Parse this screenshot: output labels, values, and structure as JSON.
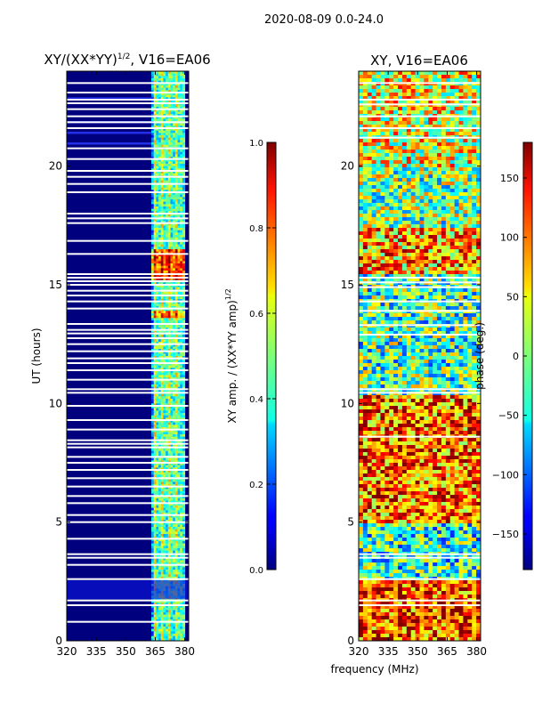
{
  "suptitle": "2020-08-09 0.0-24.0",
  "xlabel_shared": "frequency (MHz)",
  "colors": {
    "background": "#ffffff",
    "axis": "#000000",
    "gap": "#ffffff"
  },
  "chart_data": [
    {
      "type": "heatmap",
      "title_main": "XY/(XX*YY)",
      "title_exp": "1/2",
      "title_tail": ", V16=EA06",
      "ylabel": "UT (hours)",
      "xlim": [
        320,
        382
      ],
      "ylim": [
        0,
        24
      ],
      "xticks": [
        320,
        335,
        350,
        365,
        380
      ],
      "yticks": [
        0,
        5,
        10,
        15,
        20
      ],
      "bright_band_mhz": [
        363,
        380
      ],
      "gap_hours": [
        0.8,
        1.5,
        1.7,
        2.6,
        3.2,
        3.5,
        3.65,
        4.3,
        5.0,
        5.3,
        5.8,
        6.1,
        6.5,
        6.85,
        7.2,
        7.5,
        7.75,
        8.15,
        8.3,
        8.45,
        8.9,
        9.3,
        9.9,
        10.45,
        10.6,
        11.0,
        11.4,
        11.7,
        11.9,
        12.2,
        12.5,
        12.75,
        12.95,
        13.1,
        13.35,
        14.0,
        14.3,
        14.55,
        14.75,
        15.0,
        15.15,
        15.3,
        15.45,
        16.3,
        16.85,
        17.6,
        17.8,
        18.0,
        18.9,
        19.25,
        19.55,
        19.8,
        20.3,
        20.75,
        21.6,
        21.85,
        22.1,
        22.4,
        22.65,
        22.8,
        23.1,
        23.5
      ],
      "colorbar": {
        "label_main": "XY amp. / (XX*YY amp)",
        "label_exp": "1/2",
        "ticks": [
          "0.0",
          "0.2",
          "0.4",
          "0.6",
          "0.8",
          "1.0"
        ],
        "range": [
          0,
          1
        ]
      }
    },
    {
      "type": "heatmap",
      "title": "XY, V16=EA06",
      "xlim": [
        320,
        382
      ],
      "ylim": [
        0,
        24
      ],
      "xticks": [
        320,
        335,
        350,
        365,
        380
      ],
      "yticks": [
        0,
        5,
        10,
        15,
        20
      ],
      "gap_hours": [
        1.5,
        1.7,
        2.6,
        3.5,
        3.65,
        8.6,
        10.45,
        10.6,
        12.9,
        13.3,
        13.9,
        14.3,
        14.9,
        15.1,
        15.3,
        21.2,
        21.6,
        22.1,
        22.6,
        22.8,
        23.5
      ],
      "colorbar": {
        "label": "phase (deg.)",
        "ticks": [
          "−150",
          "−100",
          "−50",
          "0",
          "50",
          "100",
          "150"
        ],
        "tick_values": [
          -150,
          -100,
          -50,
          0,
          50,
          100,
          150
        ],
        "range": [
          -180,
          180
        ]
      }
    }
  ]
}
